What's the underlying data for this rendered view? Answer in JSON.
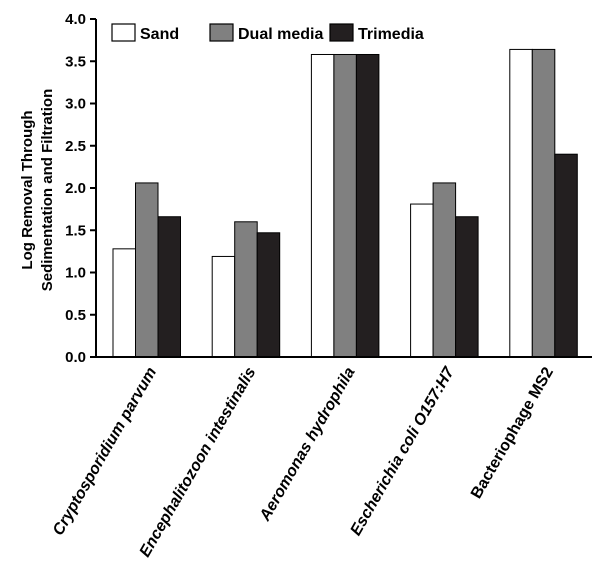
{
  "chart_data": {
    "type": "bar",
    "title": "",
    "xlabel": "",
    "ylabel_lines": [
      "Log Removal Through",
      "Sedimentation and Filtration"
    ],
    "ylim": [
      0,
      4.0
    ],
    "yticks": [
      "0.0",
      "0.5",
      "1.0",
      "1.5",
      "2.0",
      "2.5",
      "3.0",
      "3.5",
      "4.0"
    ],
    "categories": [
      "Cryptosporidium parvum",
      "Encephalitozoon intestinalis",
      "Aeromonas hydrophila",
      "Escherichia coli O157:H7",
      "Bacteriophage MS2"
    ],
    "series": [
      {
        "name": "Sand",
        "color": "#ffffff",
        "values": [
          1.28,
          1.19,
          3.58,
          1.81,
          3.64
        ]
      },
      {
        "name": "Dual media",
        "color": "#808080",
        "values": [
          2.06,
          1.6,
          3.58,
          2.06,
          3.64
        ]
      },
      {
        "name": "Trimedia",
        "color": "#231f20",
        "values": [
          1.66,
          1.47,
          3.58,
          1.66,
          2.4
        ]
      }
    ],
    "legend_position": "top-left",
    "grid": false
  }
}
